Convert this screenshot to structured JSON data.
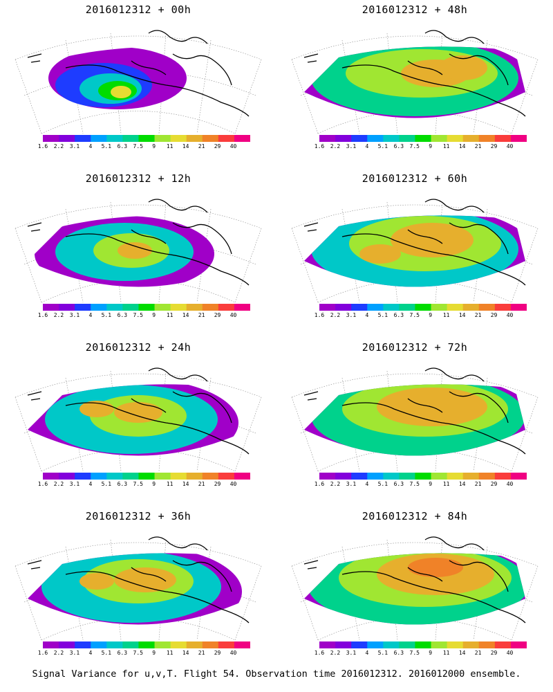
{
  "panels": [
    {
      "title": "2016012312 + 00h"
    },
    {
      "title": "2016012312 + 48h"
    },
    {
      "title": "2016012312 + 12h"
    },
    {
      "title": "2016012312 + 60h"
    },
    {
      "title": "2016012312 + 24h"
    },
    {
      "title": "2016012312 + 72h"
    },
    {
      "title": "2016012312 + 36h"
    },
    {
      "title": "2016012312 + 84h"
    }
  ],
  "colorbar": {
    "labels": [
      "1.6",
      "2.2",
      "3.1",
      "4",
      "5.1",
      "6.3",
      "7.5",
      "9",
      "11",
      "14",
      "21",
      "29",
      "40"
    ],
    "colors": [
      "#a000c8",
      "#8200dc",
      "#1e3cff",
      "#00a0ff",
      "#00c8c8",
      "#00d28c",
      "#00dc00",
      "#a0e632",
      "#e6dc32",
      "#e6af2d",
      "#f08228",
      "#fa3c3c",
      "#f00082"
    ]
  },
  "caption": "Signal Variance for u,v,T. Flight 54. Observation time 2016012312. 2016012000 ensemble."
}
